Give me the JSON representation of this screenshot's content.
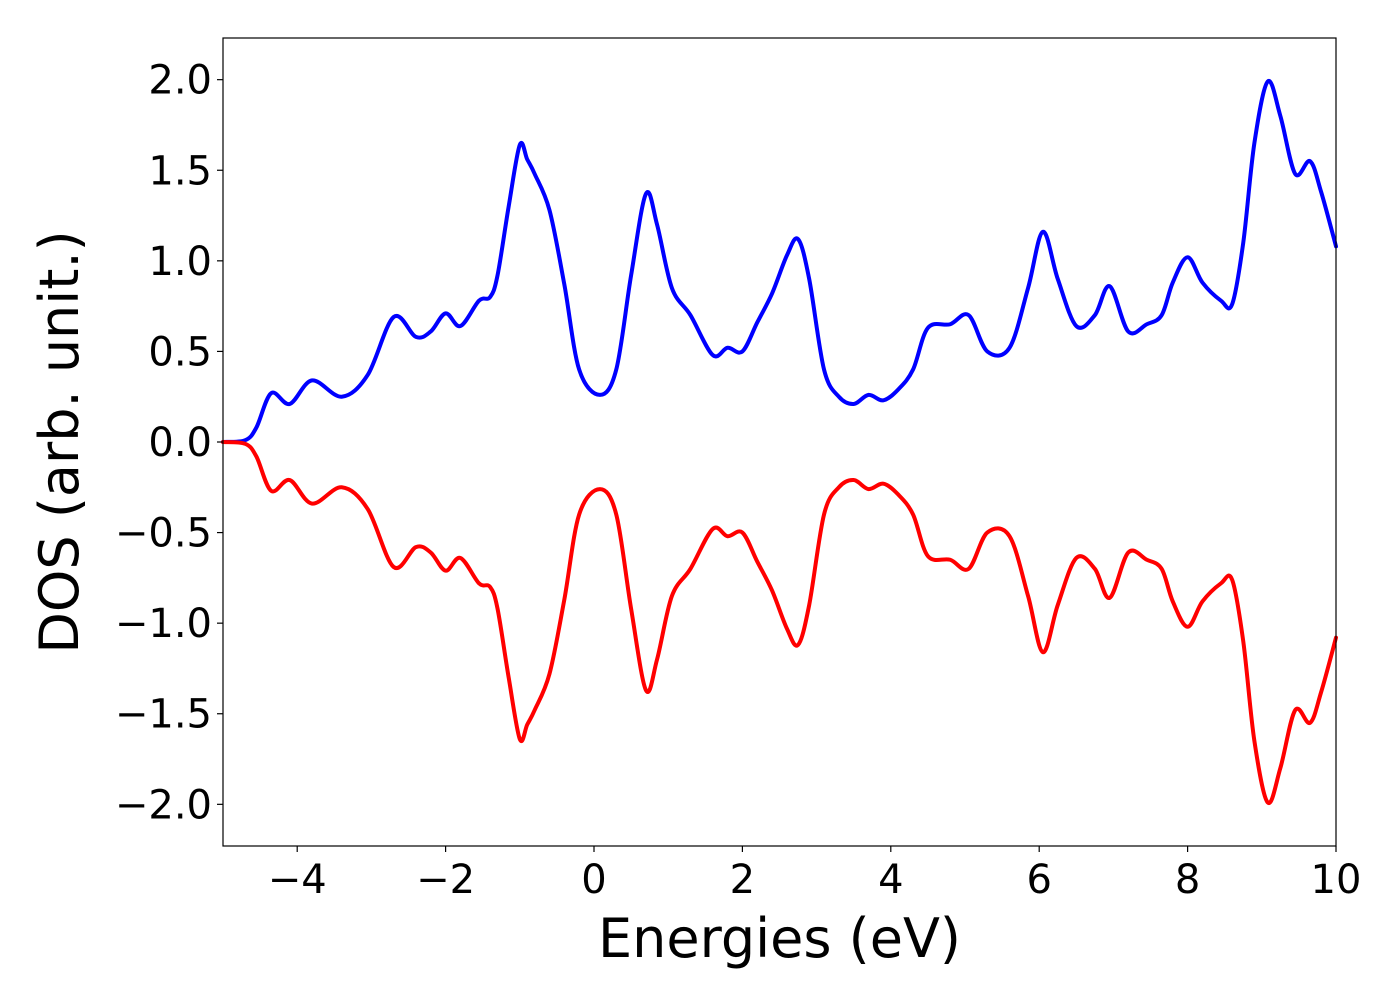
{
  "chart_data": {
    "type": "line",
    "title": "",
    "xlabel": "Energies (eV)",
    "ylabel": "DOS (arb. unit.)",
    "xlim": [
      -5,
      10
    ],
    "ylim": [
      -2.23,
      2.23
    ],
    "x_ticks": [
      -4,
      -2,
      0,
      2,
      4,
      6,
      8,
      10
    ],
    "y_ticks": [
      2.0,
      1.5,
      1.0,
      0.5,
      0.0,
      -0.5,
      -1.0,
      -1.5,
      -2.0
    ],
    "x_tick_labels": [
      "−4",
      "−2",
      "0",
      "2",
      "4",
      "6",
      "8",
      "10"
    ],
    "y_tick_labels": [
      "2.0",
      "1.5",
      "1.0",
      "0.5",
      "0.0",
      "−0.5",
      "−1.0",
      "−1.5",
      "−2.0"
    ],
    "grid": false,
    "legend": "none",
    "series": [
      {
        "color": "#0000ff",
        "points": [
          [
            -5.0,
            0.0
          ],
          [
            -4.7,
            0.01
          ],
          [
            -4.55,
            0.08
          ],
          [
            -4.35,
            0.27
          ],
          [
            -4.1,
            0.21
          ],
          [
            -3.8,
            0.34
          ],
          [
            -3.4,
            0.25
          ],
          [
            -3.05,
            0.37
          ],
          [
            -2.7,
            0.69
          ],
          [
            -2.4,
            0.58
          ],
          [
            -2.2,
            0.61
          ],
          [
            -2.0,
            0.71
          ],
          [
            -1.8,
            0.64
          ],
          [
            -1.55,
            0.78
          ],
          [
            -1.4,
            0.8
          ],
          [
            -1.3,
            0.92
          ],
          [
            -1.15,
            1.3
          ],
          [
            -1.0,
            1.64
          ],
          [
            -0.9,
            1.56
          ],
          [
            -0.8,
            1.48
          ],
          [
            -0.6,
            1.28
          ],
          [
            -0.4,
            0.87
          ],
          [
            -0.2,
            0.4
          ],
          [
            0.08,
            0.26
          ],
          [
            0.3,
            0.4
          ],
          [
            0.5,
            0.92
          ],
          [
            0.7,
            1.37
          ],
          [
            0.85,
            1.2
          ],
          [
            1.05,
            0.85
          ],
          [
            1.3,
            0.7
          ],
          [
            1.6,
            0.48
          ],
          [
            1.8,
            0.52
          ],
          [
            2.0,
            0.5
          ],
          [
            2.2,
            0.66
          ],
          [
            2.4,
            0.82
          ],
          [
            2.6,
            1.03
          ],
          [
            2.75,
            1.12
          ],
          [
            2.9,
            0.9
          ],
          [
            3.1,
            0.4
          ],
          [
            3.3,
            0.25
          ],
          [
            3.5,
            0.21
          ],
          [
            3.7,
            0.26
          ],
          [
            3.9,
            0.23
          ],
          [
            4.1,
            0.29
          ],
          [
            4.3,
            0.4
          ],
          [
            4.5,
            0.63
          ],
          [
            4.8,
            0.65
          ],
          [
            5.05,
            0.7
          ],
          [
            5.3,
            0.5
          ],
          [
            5.6,
            0.52
          ],
          [
            5.85,
            0.85
          ],
          [
            6.05,
            1.16
          ],
          [
            6.25,
            0.9
          ],
          [
            6.5,
            0.64
          ],
          [
            6.75,
            0.7
          ],
          [
            6.95,
            0.86
          ],
          [
            7.2,
            0.61
          ],
          [
            7.45,
            0.65
          ],
          [
            7.65,
            0.7
          ],
          [
            7.8,
            0.88
          ],
          [
            8.0,
            1.02
          ],
          [
            8.2,
            0.88
          ],
          [
            8.45,
            0.78
          ],
          [
            8.6,
            0.76
          ],
          [
            8.75,
            1.1
          ],
          [
            8.9,
            1.65
          ],
          [
            9.08,
            1.99
          ],
          [
            9.25,
            1.8
          ],
          [
            9.45,
            1.48
          ],
          [
            9.65,
            1.55
          ],
          [
            9.8,
            1.38
          ],
          [
            10.0,
            1.08
          ]
        ]
      },
      {
        "color": "#ff0000",
        "points": [
          [
            -5.0,
            0.0
          ],
          [
            -4.7,
            -0.01
          ],
          [
            -4.55,
            -0.08
          ],
          [
            -4.35,
            -0.27
          ],
          [
            -4.1,
            -0.21
          ],
          [
            -3.8,
            -0.34
          ],
          [
            -3.4,
            -0.25
          ],
          [
            -3.05,
            -0.37
          ],
          [
            -2.7,
            -0.69
          ],
          [
            -2.4,
            -0.58
          ],
          [
            -2.2,
            -0.61
          ],
          [
            -2.0,
            -0.71
          ],
          [
            -1.8,
            -0.64
          ],
          [
            -1.55,
            -0.78
          ],
          [
            -1.4,
            -0.8
          ],
          [
            -1.3,
            -0.92
          ],
          [
            -1.15,
            -1.3
          ],
          [
            -1.0,
            -1.64
          ],
          [
            -0.9,
            -1.56
          ],
          [
            -0.8,
            -1.48
          ],
          [
            -0.6,
            -1.28
          ],
          [
            -0.4,
            -0.87
          ],
          [
            -0.2,
            -0.4
          ],
          [
            0.08,
            -0.26
          ],
          [
            0.3,
            -0.4
          ],
          [
            0.5,
            -0.92
          ],
          [
            0.7,
            -1.37
          ],
          [
            0.85,
            -1.2
          ],
          [
            1.05,
            -0.85
          ],
          [
            1.3,
            -0.7
          ],
          [
            1.6,
            -0.48
          ],
          [
            1.8,
            -0.52
          ],
          [
            2.0,
            -0.5
          ],
          [
            2.2,
            -0.66
          ],
          [
            2.4,
            -0.82
          ],
          [
            2.6,
            -1.03
          ],
          [
            2.75,
            -1.12
          ],
          [
            2.9,
            -0.9
          ],
          [
            3.1,
            -0.4
          ],
          [
            3.3,
            -0.25
          ],
          [
            3.5,
            -0.21
          ],
          [
            3.7,
            -0.26
          ],
          [
            3.9,
            -0.23
          ],
          [
            4.1,
            -0.29
          ],
          [
            4.3,
            -0.4
          ],
          [
            4.5,
            -0.63
          ],
          [
            4.8,
            -0.65
          ],
          [
            5.05,
            -0.7
          ],
          [
            5.3,
            -0.5
          ],
          [
            5.6,
            -0.52
          ],
          [
            5.85,
            -0.85
          ],
          [
            6.05,
            -1.16
          ],
          [
            6.25,
            -0.9
          ],
          [
            6.5,
            -0.64
          ],
          [
            6.75,
            -0.7
          ],
          [
            6.95,
            -0.86
          ],
          [
            7.2,
            -0.61
          ],
          [
            7.45,
            -0.65
          ],
          [
            7.65,
            -0.7
          ],
          [
            7.8,
            -0.88
          ],
          [
            8.0,
            -1.02
          ],
          [
            8.2,
            -0.88
          ],
          [
            8.45,
            -0.78
          ],
          [
            8.6,
            -0.76
          ],
          [
            8.75,
            -1.1
          ],
          [
            8.9,
            -1.65
          ],
          [
            9.08,
            -1.99
          ],
          [
            9.25,
            -1.8
          ],
          [
            9.45,
            -1.48
          ],
          [
            9.65,
            -1.55
          ],
          [
            9.8,
            -1.38
          ],
          [
            10.0,
            -1.08
          ]
        ]
      }
    ]
  }
}
